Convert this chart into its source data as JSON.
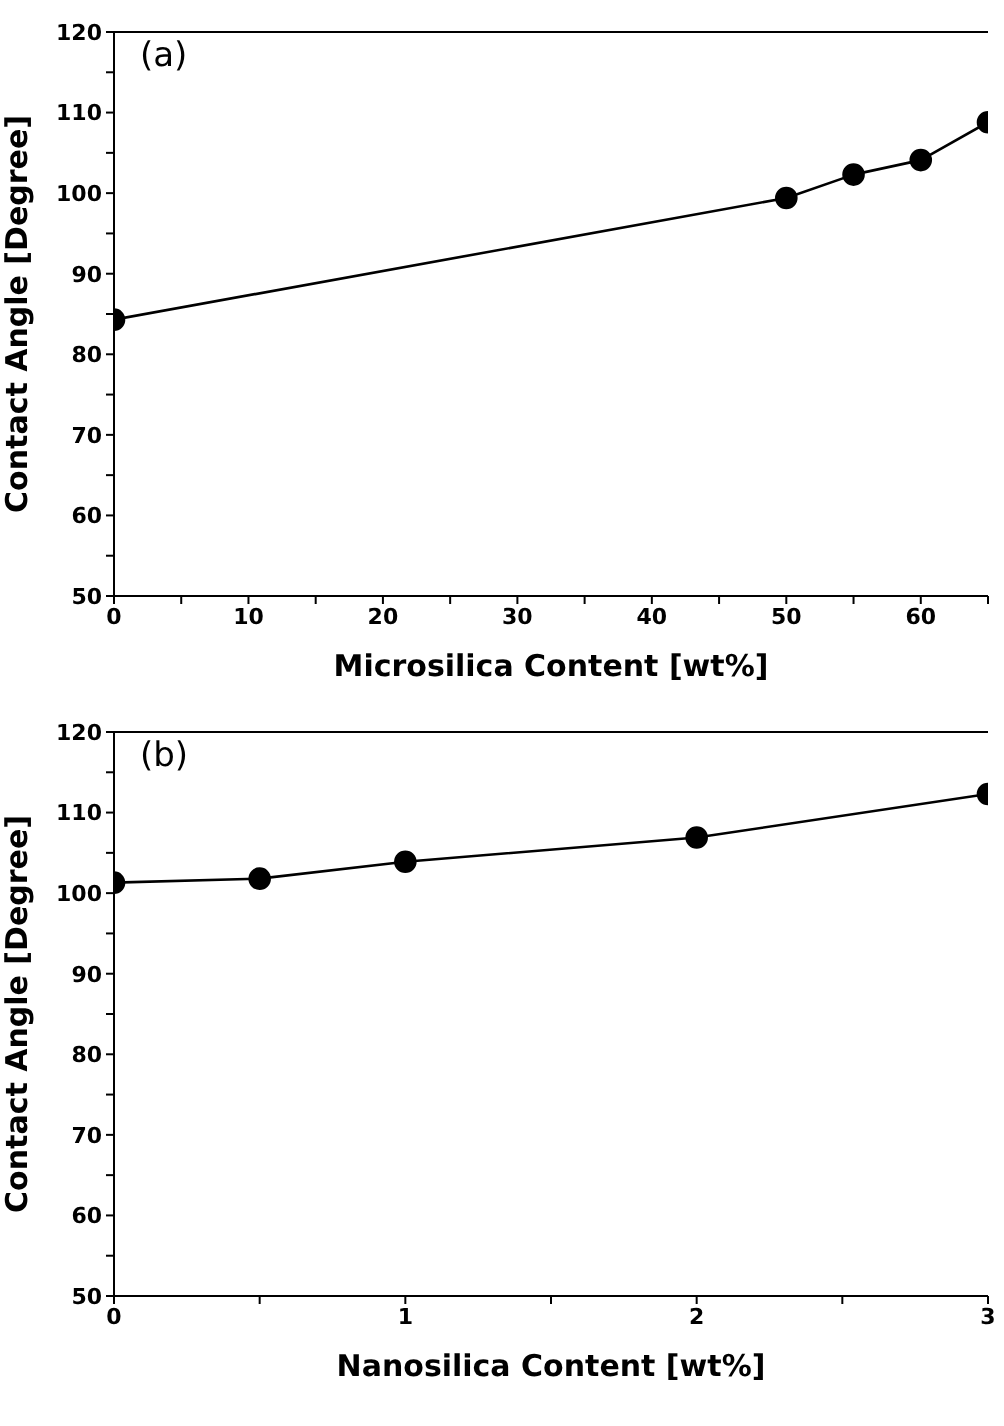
{
  "chart_data": [
    {
      "type": "line",
      "xlabel": "Microsilica Content [wt%]",
      "ylabel": "Contact Angle [Degree]",
      "annotations": [
        "(a)"
      ],
      "x": [
        0,
        50,
        55,
        60,
        65
      ],
      "values": [
        84.3,
        99.4,
        102.3,
        104.1,
        108.8
      ],
      "color": "#000000",
      "marker": "circle",
      "xlim": [
        0,
        65
      ],
      "xticks": [
        0,
        {
          "value": 5,
          "label": null
        },
        10,
        {
          "value": 15,
          "label": null
        },
        20,
        {
          "value": 25,
          "label": null
        },
        30,
        {
          "value": 35,
          "label": null
        },
        40,
        {
          "value": 45,
          "label": null
        },
        50,
        {
          "value": 55,
          "label": null
        },
        60,
        {
          "value": 65,
          "label": null
        }
      ],
      "ylim": [
        50,
        120
      ],
      "yticks": [
        50,
        {
          "value": 55,
          "label": null
        },
        60,
        {
          "value": 65,
          "label": null
        },
        70,
        {
          "value": 75,
          "label": null
        },
        80,
        {
          "value": 85,
          "label": null
        },
        90,
        {
          "value": 95,
          "label": null
        },
        100,
        {
          "value": 105,
          "label": null
        },
        110,
        {
          "value": 115,
          "label": null
        },
        120
      ]
    },
    {
      "type": "line",
      "xlabel": "Nanosilica Content [wt%]",
      "ylabel": "Contact Angle [Degree]",
      "annotations": [
        "(b)"
      ],
      "x": [
        0,
        0.5,
        1,
        2,
        3
      ],
      "values": [
        101.3,
        101.8,
        103.9,
        106.9,
        112.3
      ],
      "color": "#000000",
      "marker": "circle",
      "xlim": [
        0,
        3
      ],
      "xticks": [
        0,
        {
          "value": 0.5,
          "label": null
        },
        1,
        {
          "value": 1.5,
          "label": null
        },
        2,
        {
          "value": 2.5,
          "label": null
        },
        3
      ],
      "ylim": [
        50,
        120
      ],
      "yticks": [
        50,
        {
          "value": 55,
          "label": null
        },
        60,
        {
          "value": 65,
          "label": null
        },
        70,
        {
          "value": 75,
          "label": null
        },
        80,
        {
          "value": 85,
          "label": null
        },
        90,
        {
          "value": 95,
          "label": null
        },
        100,
        {
          "value": 105,
          "label": null
        },
        110,
        {
          "value": 115,
          "label": null
        },
        120
      ]
    }
  ]
}
